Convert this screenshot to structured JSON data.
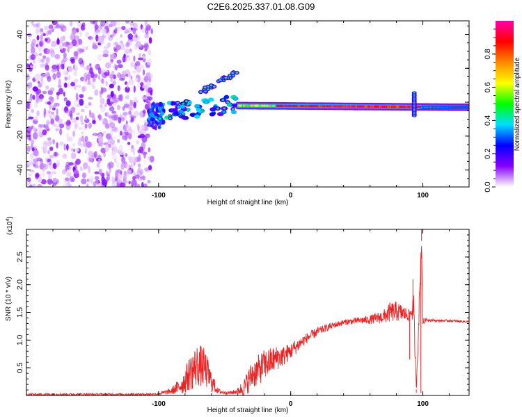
{
  "title": "C2E6.2025.337.01.08.G09",
  "chart_data": [
    {
      "type": "heatmap",
      "title": "C2E6.2025.337.01.08.G09",
      "xlabel": "Height of straight line (km)",
      "ylabel": "Frequency (Hz)",
      "xlim": [
        -200,
        135
      ],
      "ylim": [
        -50,
        48
      ],
      "xticks": [
        -100,
        0,
        100
      ],
      "xtick_labels": [
        "-100",
        "0",
        "100"
      ],
      "yticks": [
        -40,
        -20,
        0,
        20,
        40
      ],
      "ytick_labels": [
        "-40",
        "-20",
        "0",
        "20",
        "40"
      ],
      "noise_region_x": [
        -200,
        -105
      ],
      "features": [
        {
          "name": "carrier trace",
          "x": [
            -40,
            135
          ],
          "y": [
            -2,
            -3
          ],
          "amplitude": "high (0.8-1.0)"
        },
        {
          "name": "upper branch",
          "x": [
            -70,
            -40
          ],
          "y": [
            5,
            18
          ],
          "amplitude": "medium"
        },
        {
          "name": "spike",
          "x": [
            92,
            95
          ],
          "y": [
            -8,
            6
          ],
          "amplitude": "high"
        }
      ],
      "colorbar": {
        "label": "Normalized spectral amplitude",
        "range": [
          0,
          1
        ],
        "ticks": [
          0.0,
          0.2,
          0.4,
          0.6,
          0.8
        ],
        "tick_labels": [
          "0.0",
          "0.2",
          "0.4",
          "0.6",
          "0.8"
        ],
        "colors": [
          "#ffffff",
          "#8800ff",
          "#0000ff",
          "#00ddff",
          "#00ff00",
          "#ffff00",
          "#ff8800",
          "#ff0000",
          "#ff00aa"
        ]
      }
    },
    {
      "type": "line",
      "xlabel": "Height of straight line (km)",
      "ylabel": "SNR (10 * v/v)",
      "y_scale_label": "(x10",
      "y_scale_exponent": "4",
      "y_scale_close": ")",
      "xlim": [
        -200,
        135
      ],
      "ylim": [
        0,
        3.0
      ],
      "xticks": [
        -100,
        0,
        100
      ],
      "xtick_labels": [
        "-100",
        "0",
        "100"
      ],
      "yticks": [
        0.5,
        1.0,
        1.5,
        2.0,
        2.5
      ],
      "ytick_labels": [
        "0.5",
        "1.0",
        "1.5",
        "2.0",
        "2.5"
      ],
      "line_color": "#ee2222",
      "series": [
        {
          "name": "SNR",
          "x": [
            -200,
            -110,
            -100,
            -90,
            -82,
            -75,
            -70,
            -65,
            -60,
            -55,
            -50,
            -45,
            -40,
            -35,
            -30,
            -25,
            -20,
            -15,
            -10,
            -5,
            0,
            10,
            20,
            30,
            40,
            50,
            60,
            70,
            75,
            80,
            85,
            90,
            93,
            95,
            97,
            99,
            100,
            102,
            110,
            120,
            135
          ],
          "y": [
            0.02,
            0.02,
            0.03,
            0.08,
            0.2,
            0.45,
            0.55,
            0.5,
            0.25,
            0.08,
            0.05,
            0.05,
            0.08,
            0.15,
            0.35,
            0.45,
            0.55,
            0.62,
            0.68,
            0.72,
            0.8,
            1.0,
            1.15,
            1.25,
            1.32,
            1.35,
            1.37,
            1.42,
            1.5,
            1.52,
            1.48,
            1.45,
            1.6,
            0.1,
            1.45,
            2.8,
            1.3,
            1.37,
            1.35,
            1.35,
            1.33
          ],
          "fluctuation": [
            0.02,
            0.02,
            0.02,
            0.06,
            0.18,
            0.35,
            0.4,
            0.35,
            0.2,
            0.05,
            0.03,
            0.03,
            0.06,
            0.18,
            0.25,
            0.28,
            0.28,
            0.25,
            0.22,
            0.18,
            0.15,
            0.1,
            0.08,
            0.06,
            0.05,
            0.06,
            0.08,
            0.12,
            0.18,
            0.18,
            0.15,
            0.1,
            0.25,
            0.1,
            0.2,
            0.2,
            0.1,
            0.03,
            0.02,
            0.02,
            0.02
          ]
        }
      ]
    }
  ]
}
